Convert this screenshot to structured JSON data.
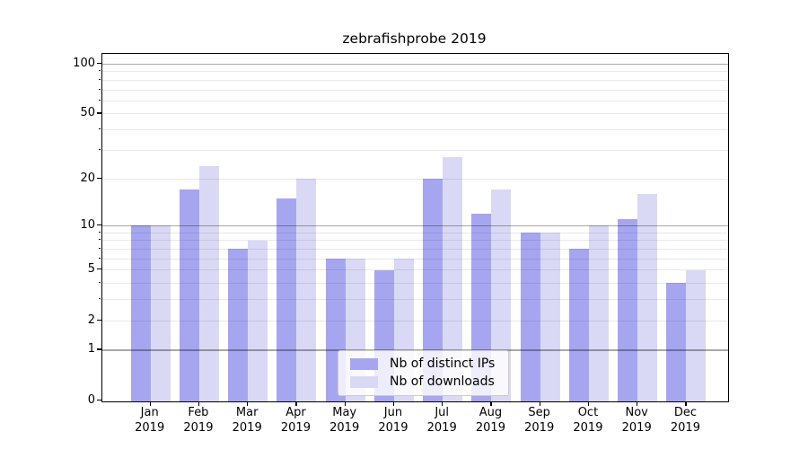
{
  "chart_data": {
    "type": "bar",
    "title": "zebrafishprobe 2019",
    "months": [
      "Jan",
      "Feb",
      "Mar",
      "Apr",
      "May",
      "Jun",
      "Jul",
      "Aug",
      "Sep",
      "Oct",
      "Nov",
      "Dec"
    ],
    "year_label": "2019",
    "series": [
      {
        "name": "Nb of distinct IPs",
        "color": "#a6a6f0",
        "values": [
          10,
          17,
          7,
          15,
          6,
          5,
          20,
          12,
          9,
          7,
          11,
          4
        ]
      },
      {
        "name": "Nb of downloads",
        "color": "#d9d9f6",
        "values": [
          10,
          24,
          8,
          20,
          6,
          6,
          27,
          17,
          9,
          10,
          16,
          5
        ]
      }
    ],
    "yscale": "log1p",
    "ylim": [
      0,
      115
    ],
    "y_tick_labels": [
      "100",
      "50",
      "20",
      "10",
      "5",
      "2",
      "1",
      "0"
    ],
    "y_tick_values": [
      100,
      50,
      20,
      10,
      5,
      2,
      1,
      0
    ],
    "major_gridlines": [
      1,
      10,
      100
    ],
    "minor_gridlines": [
      2,
      3,
      4,
      5,
      6,
      7,
      8,
      9,
      20,
      30,
      40,
      50,
      60,
      70,
      80,
      90
    ],
    "grid": true,
    "legend_position": "inside-bottom-center",
    "colors": {
      "major_grid": "rgba(0,0,0,0.34)",
      "minor_grid": "rgba(0,0,0,0.09)",
      "axis": "#000000",
      "legend_border": "#cccccc",
      "background": "#ffffff"
    }
  }
}
